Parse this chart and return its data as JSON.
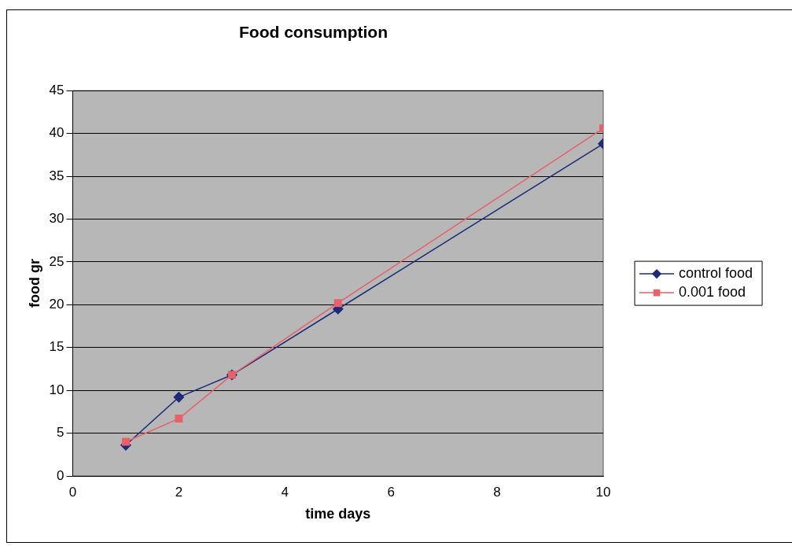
{
  "chart_data": {
    "type": "line",
    "title": "Food consumption",
    "xlabel": "time days",
    "ylabel": "food gr",
    "x": [
      1,
      2,
      3,
      5,
      10
    ],
    "series": [
      {
        "name": "control food",
        "color": "#1c2a78",
        "marker": "diamond",
        "values": [
          3.6,
          9.2,
          11.8,
          19.5,
          38.8
        ]
      },
      {
        "name": "0.001 food",
        "color": "#e8606a",
        "marker": "square",
        "values": [
          4.0,
          6.7,
          11.8,
          20.2,
          40.6
        ]
      }
    ],
    "xlim": [
      0,
      10
    ],
    "xticks": [
      0,
      2,
      4,
      6,
      8,
      10
    ],
    "ylim": [
      0,
      45
    ],
    "yticks": [
      0,
      5,
      10,
      15,
      20,
      25,
      30,
      35,
      40,
      45
    ],
    "grid": "y",
    "legend": "right",
    "line_style": "solid"
  }
}
